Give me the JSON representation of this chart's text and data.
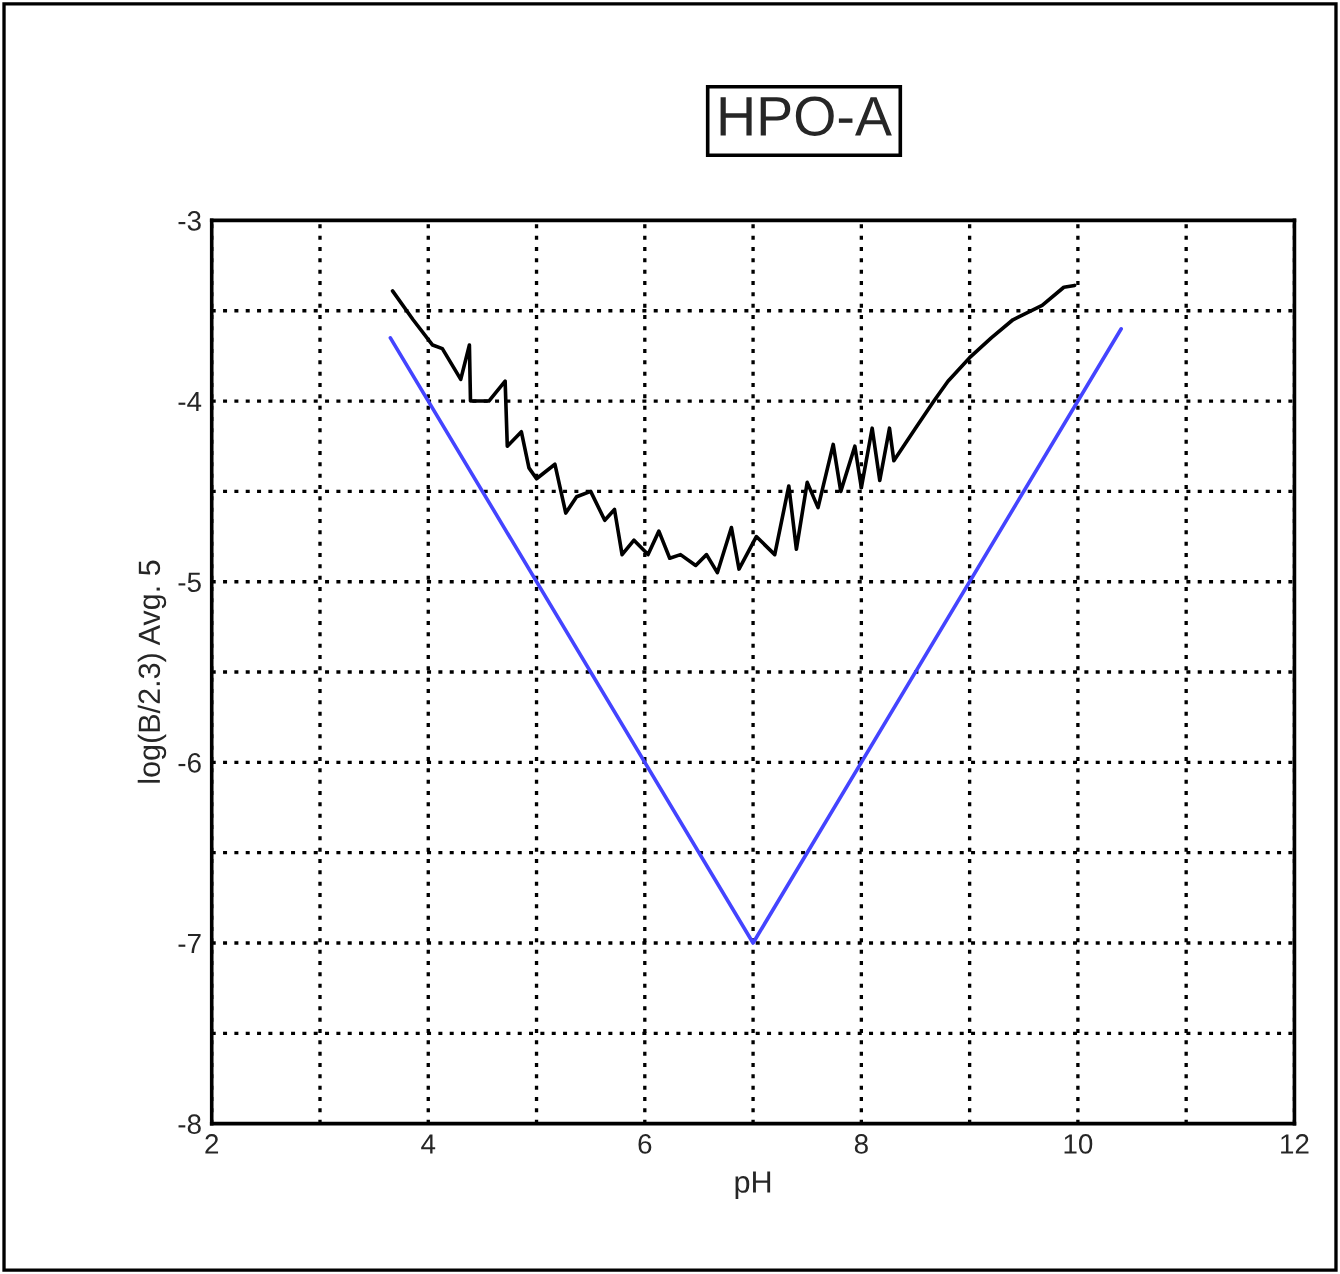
{
  "chart_data": {
    "type": "line",
    "title": "HPO-A",
    "xlabel": "pH",
    "ylabel": "log(B/2.3) Avg. 5",
    "xlim": [
      2,
      12
    ],
    "ylim": [
      -8,
      -3
    ],
    "xticks": [
      2,
      {
        "value": 3,
        "label": null
      },
      4,
      {
        "value": 5,
        "label": null
      },
      6,
      {
        "value": 7,
        "label": null
      },
      8,
      {
        "value": 9,
        "label": null
      },
      10,
      {
        "value": 11,
        "label": null
      },
      12
    ],
    "yticks": [
      -8,
      {
        "value": -7.5,
        "label": null
      },
      -7,
      {
        "value": -6.5,
        "label": null
      },
      -6,
      {
        "value": -5.5,
        "label": null
      },
      -5,
      {
        "value": -4.5,
        "label": null
      },
      -4,
      {
        "value": -3.5,
        "label": null
      },
      -3
    ],
    "grid": true,
    "legend": false,
    "line_style": "solid",
    "marker": "none",
    "series": [
      {
        "color": "#000000",
        "x": [
          3.67,
          3.86,
          4.04,
          4.13,
          4.3,
          4.38,
          4.39,
          4.56,
          4.71,
          4.73,
          4.86,
          4.93,
          5.0,
          5.17,
          5.27,
          5.37,
          5.5,
          5.63,
          5.72,
          5.79,
          5.9,
          6.03,
          6.13,
          6.23,
          6.33,
          6.47,
          6.57,
          6.67,
          6.8,
          6.87,
          7.03,
          7.2,
          7.33,
          7.4,
          7.5,
          7.6,
          7.74,
          7.81,
          7.94,
          8.0,
          8.1,
          8.17,
          8.26,
          8.3,
          8.5,
          8.67,
          8.8,
          9.0,
          9.2,
          9.4,
          9.67,
          9.87,
          9.97
        ],
        "values": [
          -3.39,
          -3.55,
          -3.69,
          -3.71,
          -3.88,
          -3.69,
          -4.0,
          -4.0,
          -3.89,
          -4.25,
          -4.17,
          -4.37,
          -4.43,
          -4.35,
          -4.62,
          -4.53,
          -4.5,
          -4.66,
          -4.6,
          -4.85,
          -4.77,
          -4.85,
          -4.72,
          -4.87,
          -4.85,
          -4.91,
          -4.85,
          -4.95,
          -4.7,
          -4.93,
          -4.75,
          -4.85,
          -4.47,
          -4.82,
          -4.45,
          -4.59,
          -4.24,
          -4.5,
          -4.25,
          -4.48,
          -4.15,
          -4.44,
          -4.15,
          -4.33,
          -4.15,
          -4.0,
          -3.89,
          -3.76,
          -3.65,
          -3.55,
          -3.47,
          -3.37,
          -3.36
        ]
      },
      {
        "color": "#4444ff",
        "x": [
          3.65,
          7.0,
          10.4
        ],
        "values": [
          -3.65,
          -7.0,
          -3.6
        ]
      }
    ]
  }
}
